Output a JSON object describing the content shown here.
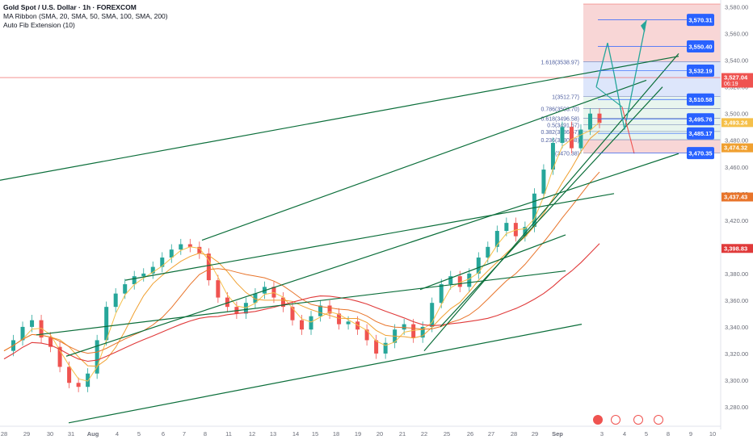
{
  "legend": {
    "title": "Gold Spot / U.S. Dollar · 1h · FOREXCOM",
    "ma_ribbon": "MA Ribbon (SMA, 20, SMA, 50, SMA, 100, SMA, 200)",
    "fib_indicator": "Auto Fib Extension (10)"
  },
  "colors": {
    "channel": "#0b6e3a",
    "projection": "#26a69a",
    "ma20": "#f5c04a",
    "ma50": "#f0a030",
    "ma100": "#e8742a",
    "ma200": "#e03a3a",
    "candle_up": "#26a69a",
    "candle_down": "#ef5350",
    "target_box": "#2962ff",
    "fib_zone_red": "#f8d6d6",
    "fib_zone_blue": "#dde6fb"
  },
  "chart_data": {
    "type": "line",
    "title": "",
    "xlabel": "",
    "ylabel": "",
    "ylim": [
      3272,
      3585
    ],
    "grid": false,
    "x_ticks": [
      "28",
      "29",
      "30",
      "31",
      "Aug",
      "4",
      "5",
      "6",
      "7",
      "8",
      "11",
      "12",
      "13",
      "14",
      "15",
      "18",
      "19",
      "20",
      "21",
      "22",
      "25",
      "26",
      "27",
      "28",
      "29",
      "Sep",
      "3",
      "4",
      "5",
      "8",
      "9",
      "10"
    ],
    "y_ticks": [
      "3,580.00",
      "3,560.00",
      "3,540.00",
      "3,520.00",
      "3,500.00",
      "3,480.00",
      "3,460.00",
      "3,440.00",
      "3,420.00",
      "3,400.00",
      "3,380.00",
      "3,360.00",
      "3,340.00",
      "3,320.00",
      "3,300.00",
      "3,280.00"
    ],
    "price_label_left": "Aug",
    "price_markers": [
      {
        "label": "3,527.04",
        "sub": "06:19",
        "color": "#ef5350"
      },
      {
        "label": "3,493.24",
        "color": "#f5c04a"
      },
      {
        "label": "3,474.32",
        "color": "#f0a030"
      },
      {
        "label": "3,437.43",
        "color": "#e8742a"
      },
      {
        "label": "3,398.83",
        "color": "#e03a3a"
      }
    ],
    "targets": [
      "3,570.31",
      "3,550.40",
      "3,532.19",
      "3,510.58",
      "3,495.76",
      "3,485.17",
      "3,470.35"
    ],
    "fib_levels": [
      {
        "label": "1.618(3538.97)",
        "value": 3538.97
      },
      {
        "label": "1(3512.77)",
        "value": 3512.77
      },
      {
        "label": "0.786(3503.70)",
        "value": 3503.7
      },
      {
        "label": "0.618(3496.58)",
        "value": 3496.58
      },
      {
        "label": "0.5(3491.57)",
        "value": 3491.57
      },
      {
        "label": "0.382(3486.57)",
        "value": 3486.57
      },
      {
        "label": "0.236(3480.38)",
        "value": 3480.38
      },
      {
        "label": "0(3470.38)",
        "value": 3470.38
      }
    ],
    "series_close": [
      3322,
      3330,
      3340,
      3345,
      3332,
      3325,
      3310,
      3298,
      3295,
      3305,
      3330,
      3355,
      3365,
      3372,
      3378,
      3380,
      3385,
      3392,
      3398,
      3402,
      3400,
      3395,
      3375,
      3362,
      3355,
      3350,
      3358,
      3365,
      3370,
      3362,
      3355,
      3345,
      3338,
      3348,
      3356,
      3350,
      3342,
      3344,
      3338,
      3330,
      3320,
      3328,
      3338,
      3342,
      3332,
      3340,
      3358,
      3372,
      3378,
      3370,
      3380,
      3392,
      3400,
      3412,
      3418,
      3408,
      3415,
      3440,
      3458,
      3478,
      3490,
      3474,
      3488,
      3500,
      3493
    ]
  }
}
